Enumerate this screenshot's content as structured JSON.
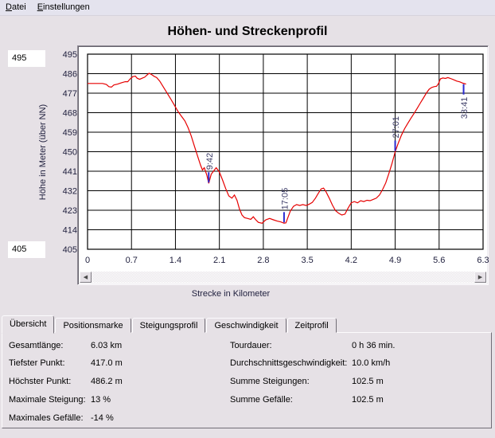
{
  "menu": {
    "items": [
      {
        "label": "Datei"
      },
      {
        "label": "Einstellungen"
      }
    ]
  },
  "title": "Höhen- und Streckenprofil",
  "axis_range_inputs": {
    "y_max": "495",
    "y_min": "405"
  },
  "scrollbar": {
    "left_arrow": "◀",
    "right_arrow": "▶"
  },
  "chart_data": {
    "type": "line",
    "xlabel": "Strecke in Kilometer",
    "ylabel": "Höhe in Meter (über NN)",
    "xlim": [
      0,
      6.3
    ],
    "ylim": [
      405,
      495
    ],
    "x_tick_labels": [
      "0",
      "0.7",
      "1.4",
      "2.1",
      "2.8",
      "3.5",
      "4.2",
      "4.9",
      "5.6",
      "6.3"
    ],
    "y_tick_labels": [
      "495",
      "486",
      "477",
      "468",
      "459",
      "450",
      "441",
      "432",
      "423",
      "414",
      "405"
    ],
    "grid": true,
    "line_color": "#e60000",
    "axis_text_color": "#1f1f3d",
    "marker_tick_color": "#2a2ad0",
    "marker_text_color": "#3b3b66",
    "points": [
      [
        0,
        481.5
      ],
      [
        0.08,
        481.5
      ],
      [
        0.16,
        481.5
      ],
      [
        0.24,
        481.5
      ],
      [
        0.3,
        481
      ],
      [
        0.34,
        480
      ],
      [
        0.38,
        479.8
      ],
      [
        0.42,
        480.8
      ],
      [
        0.48,
        481.2
      ],
      [
        0.54,
        481.8
      ],
      [
        0.6,
        482.3
      ],
      [
        0.64,
        482.3
      ],
      [
        0.68,
        483.6
      ],
      [
        0.72,
        484.6
      ],
      [
        0.76,
        484.9
      ],
      [
        0.79,
        483.9
      ],
      [
        0.83,
        483.4
      ],
      [
        0.87,
        483.9
      ],
      [
        0.91,
        484.4
      ],
      [
        0.95,
        485.4
      ],
      [
        0.98,
        486.2
      ],
      [
        1.02,
        485.6
      ],
      [
        1.06,
        484.8
      ],
      [
        1.1,
        484.2
      ],
      [
        1.15,
        482.6
      ],
      [
        1.2,
        480.2
      ],
      [
        1.26,
        477.4
      ],
      [
        1.32,
        474.6
      ],
      [
        1.38,
        471.6
      ],
      [
        1.44,
        468.6
      ],
      [
        1.5,
        466.2
      ],
      [
        1.55,
        464.2
      ],
      [
        1.6,
        461.2
      ],
      [
        1.65,
        457.4
      ],
      [
        1.7,
        452.8
      ],
      [
        1.75,
        448.2
      ],
      [
        1.8,
        443.8
      ],
      [
        1.83,
        441.6
      ],
      [
        1.86,
        442.6
      ],
      [
        1.9,
        439.2
      ],
      [
        1.93,
        435.4
      ],
      [
        1.97,
        439.6
      ],
      [
        2.01,
        441.2
      ],
      [
        2.05,
        442.6
      ],
      [
        2.1,
        440.6
      ],
      [
        2.15,
        437
      ],
      [
        2.2,
        433
      ],
      [
        2.25,
        429.6
      ],
      [
        2.3,
        428.6
      ],
      [
        2.34,
        430
      ],
      [
        2.38,
        427.6
      ],
      [
        2.42,
        423.6
      ],
      [
        2.46,
        420.8
      ],
      [
        2.5,
        419.6
      ],
      [
        2.55,
        419.2
      ],
      [
        2.6,
        418.8
      ],
      [
        2.64,
        420
      ],
      [
        2.68,
        418.6
      ],
      [
        2.72,
        417.4
      ],
      [
        2.78,
        417
      ],
      [
        2.84,
        418.6
      ],
      [
        2.9,
        419.2
      ],
      [
        2.96,
        418.6
      ],
      [
        3.02,
        418
      ],
      [
        3.08,
        417.6
      ],
      [
        3.13,
        417
      ],
      [
        3.16,
        417.2
      ],
      [
        3.19,
        419.6
      ],
      [
        3.23,
        422.6
      ],
      [
        3.28,
        424.8
      ],
      [
        3.33,
        425.6
      ],
      [
        3.38,
        425.2
      ],
      [
        3.43,
        425.6
      ],
      [
        3.48,
        425.2
      ],
      [
        3.53,
        425.8
      ],
      [
        3.58,
        426.6
      ],
      [
        3.63,
        428.6
      ],
      [
        3.68,
        431
      ],
      [
        3.72,
        432.8
      ],
      [
        3.76,
        433.2
      ],
      [
        3.8,
        431.4
      ],
      [
        3.85,
        428.6
      ],
      [
        3.9,
        425.4
      ],
      [
        3.95,
        422.8
      ],
      [
        4.0,
        421.6
      ],
      [
        4.05,
        420.8
      ],
      [
        4.1,
        421.2
      ],
      [
        4.15,
        424
      ],
      [
        4.2,
        426.4
      ],
      [
        4.25,
        427
      ],
      [
        4.3,
        426.4
      ],
      [
        4.35,
        427.4
      ],
      [
        4.4,
        427
      ],
      [
        4.45,
        427.6
      ],
      [
        4.5,
        427.4
      ],
      [
        4.55,
        428
      ],
      [
        4.6,
        428.6
      ],
      [
        4.65,
        430
      ],
      [
        4.7,
        432.6
      ],
      [
        4.75,
        435.6
      ],
      [
        4.8,
        440
      ],
      [
        4.85,
        444.6
      ],
      [
        4.9,
        450
      ],
      [
        4.95,
        454
      ],
      [
        5.0,
        457.6
      ],
      [
        5.05,
        460.6
      ],
      [
        5.1,
        463
      ],
      [
        5.15,
        465.4
      ],
      [
        5.2,
        467.6
      ],
      [
        5.25,
        470
      ],
      [
        5.3,
        472.4
      ],
      [
        5.35,
        474.8
      ],
      [
        5.4,
        477.2
      ],
      [
        5.44,
        478.8
      ],
      [
        5.48,
        479.6
      ],
      [
        5.52,
        480
      ],
      [
        5.56,
        480.2
      ],
      [
        5.59,
        481.4
      ],
      [
        5.62,
        483.6
      ],
      [
        5.66,
        484
      ],
      [
        5.7,
        483.8
      ],
      [
        5.74,
        484.2
      ],
      [
        5.78,
        483.8
      ],
      [
        5.83,
        483.2
      ],
      [
        5.88,
        482.6
      ],
      [
        5.93,
        482.2
      ],
      [
        5.98,
        481.6
      ],
      [
        6.03,
        481.2
      ]
    ],
    "time_markers": [
      {
        "label": "9:42",
        "km": 1.93,
        "side": "above"
      },
      {
        "label": "17:05",
        "km": 3.13,
        "side": "above"
      },
      {
        "label": "27:01",
        "km": 4.9,
        "side": "above"
      },
      {
        "label": "33:41",
        "km": 5.99,
        "side": "below"
      }
    ]
  },
  "tabs": [
    {
      "label": "Übersicht",
      "active": true
    },
    {
      "label": "Positionsmarke",
      "active": false
    },
    {
      "label": "Steigungsprofil",
      "active": false
    },
    {
      "label": "Geschwindigkeit",
      "active": false
    },
    {
      "label": "Zeitprofil",
      "active": false
    }
  ],
  "stats": {
    "left": [
      {
        "label": "Gesamtlänge:",
        "value": "6.03 km"
      },
      {
        "label": "Tiefster Punkt:",
        "value": "417.0 m"
      },
      {
        "label": "Höchster Punkt:",
        "value": "486.2 m"
      },
      {
        "label": "Maximale Steigung:",
        "value": "13 %"
      },
      {
        "label": "Maximales Gefälle:",
        "value": "-14 %"
      }
    ],
    "right": [
      {
        "label": "Tourdauer:",
        "value": "0 h 36 min."
      },
      {
        "label": "Durchschnittsgeschwindigkeit:",
        "value": "10.0 km/h"
      },
      {
        "label": "Summe Steigungen:",
        "value": "102.5 m"
      },
      {
        "label": "Summe Gefälle:",
        "value": "102.5 m"
      }
    ]
  }
}
